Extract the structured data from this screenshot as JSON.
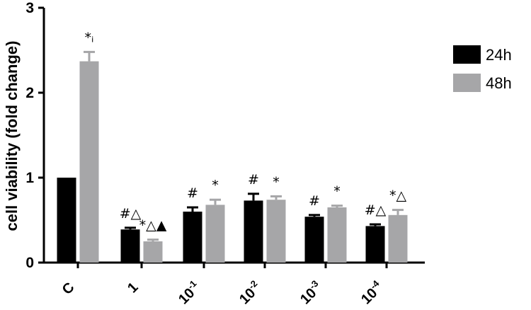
{
  "chart_data": {
    "type": "bar",
    "ylabel": "cell viability (fold change)",
    "xlabel": "",
    "ylim": [
      0,
      3
    ],
    "yticks": [
      "0",
      "1",
      "2",
      "3"
    ],
    "categories": [
      {
        "base": "C",
        "sup": ""
      },
      {
        "base": "1",
        "sup": ""
      },
      {
        "base": "10",
        "sup": "-1"
      },
      {
        "base": "10",
        "sup": "-2"
      },
      {
        "base": "10",
        "sup": "-3"
      },
      {
        "base": "10",
        "sup": "-4"
      }
    ],
    "series": [
      {
        "name": "24h",
        "color": "#000000",
        "values": [
          1.0,
          0.39,
          0.6,
          0.73,
          0.54,
          0.43
        ],
        "errors": [
          0.0,
          0.02,
          0.05,
          0.08,
          0.02,
          0.02
        ],
        "annotations": [
          "",
          "#△",
          "#",
          "#",
          "#",
          "#△"
        ]
      },
      {
        "name": "48h",
        "color": "#a6a6a8",
        "values": [
          2.37,
          0.25,
          0.68,
          0.74,
          0.65,
          0.56
        ],
        "errors": [
          0.11,
          0.02,
          0.06,
          0.04,
          0.02,
          0.06
        ],
        "annotations": [
          "*ᵢ",
          "*△▲",
          "*",
          "*",
          "*",
          "*△"
        ]
      }
    ],
    "legend_position": "top-right",
    "grid": false
  }
}
